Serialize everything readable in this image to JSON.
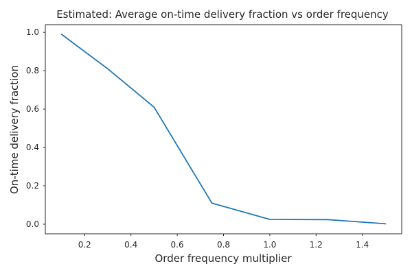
{
  "chart_data": {
    "type": "line",
    "title": "Estimated: Average on-time delivery fraction vs order frequency",
    "xlabel": "Order frequency multiplier",
    "ylabel": "On-time delivery fraction",
    "xlim": [
      0.03,
      1.57
    ],
    "ylim": [
      -0.05,
      1.04
    ],
    "grid": false,
    "x_ticks": [
      0.2,
      0.4,
      0.6,
      0.8,
      1.0,
      1.2,
      1.4
    ],
    "x_tick_labels": [
      "0.2",
      "0.4",
      "0.6",
      "0.8",
      "1.0",
      "1.2",
      "1.4"
    ],
    "y_ticks": [
      0.0,
      0.2,
      0.4,
      0.6,
      0.8,
      1.0
    ],
    "y_tick_labels": [
      "0.0",
      "0.2",
      "0.4",
      "0.6",
      "0.8",
      "1.0"
    ],
    "series": [
      {
        "color": "#1f77b4",
        "x": [
          0.1,
          0.3,
          0.5,
          0.75,
          1.0,
          1.25,
          1.5
        ],
        "values": [
          0.99,
          0.81,
          0.61,
          0.11,
          0.025,
          0.024,
          0.002
        ]
      }
    ]
  }
}
